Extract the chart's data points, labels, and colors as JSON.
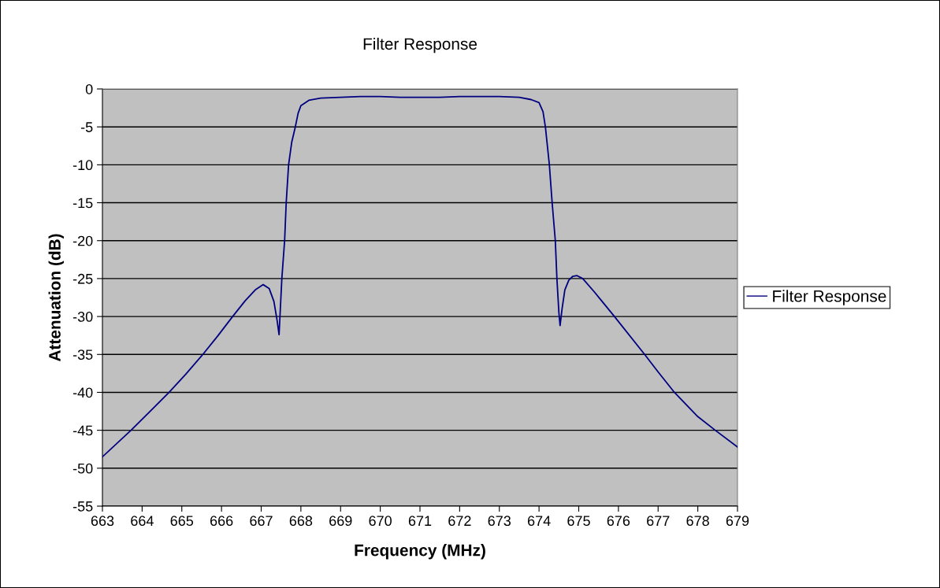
{
  "chart_data": {
    "type": "line",
    "title": "Filter Response",
    "xlabel": "Frequency (MHz)",
    "ylabel": "Attenuation (dB)",
    "xlim": [
      663,
      679
    ],
    "xticks": [
      663,
      664,
      665,
      666,
      667,
      668,
      669,
      670,
      671,
      672,
      673,
      674,
      675,
      676,
      677,
      678,
      679
    ],
    "ylim": [
      -55,
      0
    ],
    "yticks": [
      -55,
      -50,
      -45,
      -40,
      -35,
      -30,
      -25,
      -20,
      -15,
      -10,
      -5,
      0
    ],
    "grid": "y",
    "legend": "right",
    "marker": "none",
    "line_style": "solid",
    "series": [
      {
        "name": "Filter Response",
        "color": "#000080",
        "x": [
          663,
          663.72,
          664.2,
          664.68,
          665.1,
          665.53,
          665.9,
          666.28,
          666.6,
          666.85,
          667.05,
          667.2,
          667.32,
          667.4,
          667.45,
          667.52,
          667.59,
          667.63,
          667.69,
          667.77,
          667.86,
          667.93,
          668.0,
          668.2,
          668.5,
          669,
          669.5,
          670,
          670.5,
          671,
          671.5,
          672,
          672.5,
          673,
          673.5,
          673.8,
          674.0,
          674.1,
          674.16,
          674.26,
          674.33,
          674.41,
          674.45,
          674.5,
          674.53,
          674.58,
          674.65,
          674.75,
          674.85,
          674.95,
          675.1,
          675.4,
          675.9,
          676.66,
          677,
          677.41,
          678,
          678.44,
          679
        ],
        "values": [
          -48.5,
          -45,
          -42.5,
          -40,
          -37.6,
          -35,
          -32.6,
          -30,
          -27.9,
          -26.5,
          -25.8,
          -26.3,
          -28,
          -30.5,
          -32.4,
          -25,
          -20,
          -15,
          -10,
          -7,
          -5,
          -3.2,
          -2.2,
          -1.5,
          -1.2,
          -1.1,
          -1.0,
          -1.0,
          -1.1,
          -1.1,
          -1.1,
          -1.0,
          -1.0,
          -1.0,
          -1.1,
          -1.4,
          -1.8,
          -3,
          -5,
          -10,
          -15,
          -20,
          -25,
          -29.5,
          -31.2,
          -29,
          -26.5,
          -25.2,
          -24.7,
          -24.6,
          -25,
          -26.8,
          -30,
          -35,
          -37.3,
          -40,
          -43.2,
          -45,
          -47.2
        ]
      }
    ]
  }
}
